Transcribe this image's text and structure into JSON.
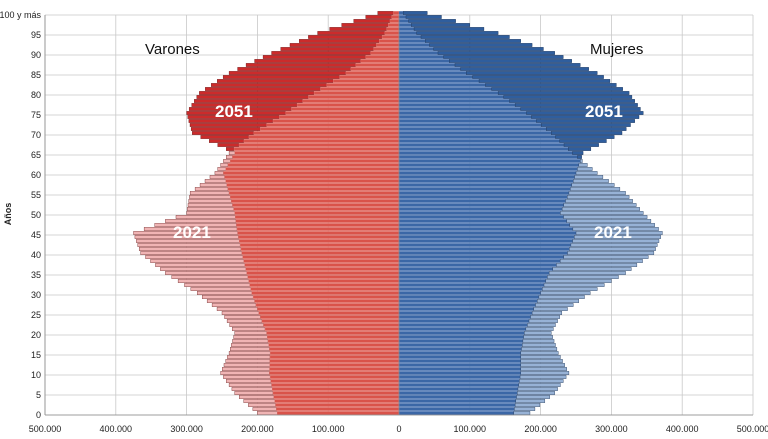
{
  "chart_data": {
    "type": "population-pyramid",
    "ylabel": "Años",
    "y_ticks": [
      "0",
      "5",
      "10",
      "15",
      "20",
      "25",
      "30",
      "35",
      "40",
      "45",
      "50",
      "55",
      "60",
      "65",
      "70",
      "75",
      "80",
      "85",
      "90",
      "95",
      "100 y más"
    ],
    "x_ticks": [
      "500.000",
      "400.000",
      "300.000",
      "200.000",
      "100.000",
      "0",
      "100.000",
      "200.000",
      "300.000",
      "400.000",
      "500.000"
    ],
    "xlim": [
      -500000,
      500000
    ],
    "grid": true,
    "labels": {
      "left": "Varones",
      "right": "Mujeres",
      "series_2051_male": "2051",
      "series_2021_male": "2021",
      "series_2051_female": "2051",
      "series_2021_female": "2021"
    },
    "ages": [
      0,
      5,
      10,
      15,
      20,
      25,
      30,
      35,
      40,
      45,
      50,
      55,
      60,
      65,
      70,
      75,
      80,
      85,
      90,
      95,
      100
    ],
    "series": [
      {
        "name": "2021",
        "sex": "Varones",
        "color": "#f0b4b4",
        "values": [
          200000,
          232000,
          252000,
          240000,
          232000,
          250000,
          285000,
          330000,
          365000,
          375000,
          300000,
          295000,
          260000,
          240000,
          205000,
          160000,
          120000,
          75000,
          40000,
          20000,
          8000
        ]
      },
      {
        "name": "2051",
        "sex": "Varones",
        "color": "#cc2b2b",
        "values": [
          172000,
          178000,
          183000,
          182000,
          187000,
          198000,
          208000,
          215000,
          222000,
          228000,
          232000,
          240000,
          248000,
          232000,
          292000,
          300000,
          282000,
          240000,
          180000,
          115000,
          30000
        ]
      },
      {
        "name": "2021",
        "sex": "Mujeres",
        "color": "#97b2d6",
        "values": [
          185000,
          220000,
          240000,
          225000,
          215000,
          230000,
          270000,
          320000,
          360000,
          372000,
          345000,
          320000,
          280000,
          245000,
          215000,
          180000,
          140000,
          95000,
          55000,
          25000,
          6000
        ]
      },
      {
        "name": "2051",
        "sex": "Mujeres",
        "color": "#2f5e9e",
        "values": [
          162000,
          167000,
          172000,
          172000,
          177000,
          188000,
          200000,
          212000,
          238000,
          250000,
          228000,
          240000,
          250000,
          260000,
          315000,
          345000,
          325000,
          280000,
          220000,
          140000,
          40000
        ]
      }
    ],
    "fill_colors": {
      "male_common": "#d9534a",
      "female_common": "#3b67a6"
    }
  }
}
